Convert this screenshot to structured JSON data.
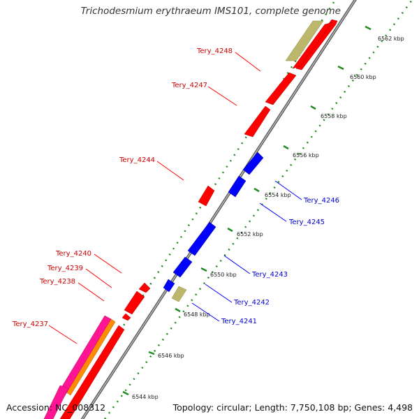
{
  "title": "Trichodesmium erythraeum IMS101, complete genome",
  "footer": {
    "accession": "Accession: NC_008312",
    "summary": "Topology: circular; Length: 7,750,108 bp; Genes: 4,498"
  },
  "colors": {
    "forward_cds": "#ff0000",
    "reverse_cds": "#0000ff",
    "other_feature": "#bdb76b",
    "pink_feature": "#ff1493",
    "orange_feature": "#ff8c00",
    "backbone": "#808080",
    "ticks": "#228b22",
    "forward_label": "#cc0000",
    "reverse_label": "#0000cc"
  },
  "ticks": [
    {
      "label": "6544 kbp"
    },
    {
      "label": "6546 kbp"
    },
    {
      "label": "6548 kbp"
    },
    {
      "label": "6550 kbp"
    },
    {
      "label": "6552 kbp"
    },
    {
      "label": "6554 kbp"
    },
    {
      "label": "6556 kbp"
    },
    {
      "label": "6558 kbp"
    },
    {
      "label": "6560 kbp"
    },
    {
      "label": "6562 kbp"
    }
  ],
  "gene_labels": [
    {
      "text": "Tery_4248",
      "strand": "forward"
    },
    {
      "text": "Tery_4247",
      "strand": "forward"
    },
    {
      "text": "Tery_4244",
      "strand": "forward"
    },
    {
      "text": "Tery_4240",
      "strand": "forward"
    },
    {
      "text": "Tery_4239",
      "strand": "forward"
    },
    {
      "text": "Tery_4238",
      "strand": "forward"
    },
    {
      "text": "Tery_4237",
      "strand": "forward"
    },
    {
      "text": "Tery_4246",
      "strand": "reverse"
    },
    {
      "text": "Tery_4245",
      "strand": "reverse"
    },
    {
      "text": "Tery_4243",
      "strand": "reverse"
    },
    {
      "text": "Tery_4242",
      "strand": "reverse"
    },
    {
      "text": "Tery_4241",
      "strand": "reverse"
    }
  ]
}
